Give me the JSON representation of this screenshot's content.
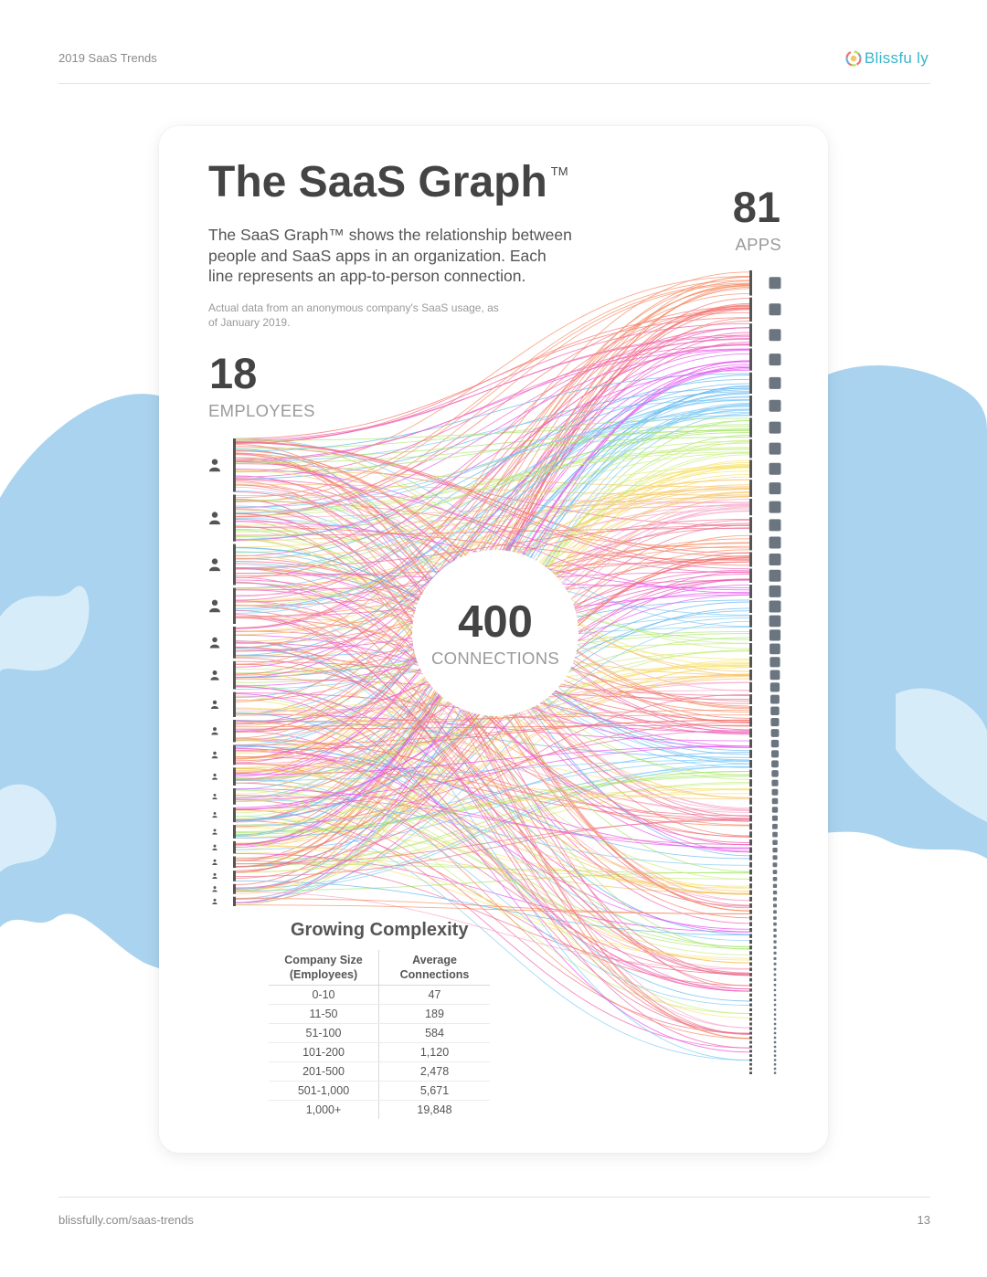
{
  "header": {
    "doc_title": "2019 SaaS Trends",
    "brand_name": "Blissfu ly"
  },
  "footer": {
    "url": "blissfully.com/saas-trends",
    "page_number": "13"
  },
  "card": {
    "title": "The SaaS Graph",
    "title_mark": "TM",
    "description": "The SaaS Graph™ shows the relationship between people and SaaS apps in an organization. Each line represents an app-to-person connection.",
    "note": "Actual data from an anonymous company's SaaS usage, as of January 2019."
  },
  "stats": {
    "employees_count": "18",
    "employees_label": "EMPLOYEES",
    "apps_count": "81",
    "apps_label": "APPS",
    "connections_count": "400",
    "connections_label": "CONNECTIONS"
  },
  "complexity": {
    "title": "Growing Complexity",
    "headers": [
      "Company Size (Employees)",
      "Average Connections"
    ],
    "rows": [
      [
        "0-10",
        "47"
      ],
      [
        "11-50",
        "189"
      ],
      [
        "51-100",
        "584"
      ],
      [
        "101-200",
        "1,120"
      ],
      [
        "201-500",
        "2,478"
      ],
      [
        "501-1,000",
        "5,671"
      ],
      [
        "1,000+",
        "19,848"
      ]
    ]
  },
  "colors": {
    "brand": "#39b5c9",
    "text_dark": "#444444",
    "text_muted": "#9a9a9a",
    "node": "#555555",
    "app_node": "#6b7580",
    "sky": "#a9d3ee",
    "line_palette": [
      "#f58b62",
      "#f2726e",
      "#ee5fb4",
      "#e74df0",
      "#5fb6ee",
      "#7cc9f5",
      "#a8e86a",
      "#c6ef7b",
      "#f6e36c",
      "#f6c56a",
      "#f7a6c8",
      "#eb6f8f"
    ]
  }
}
